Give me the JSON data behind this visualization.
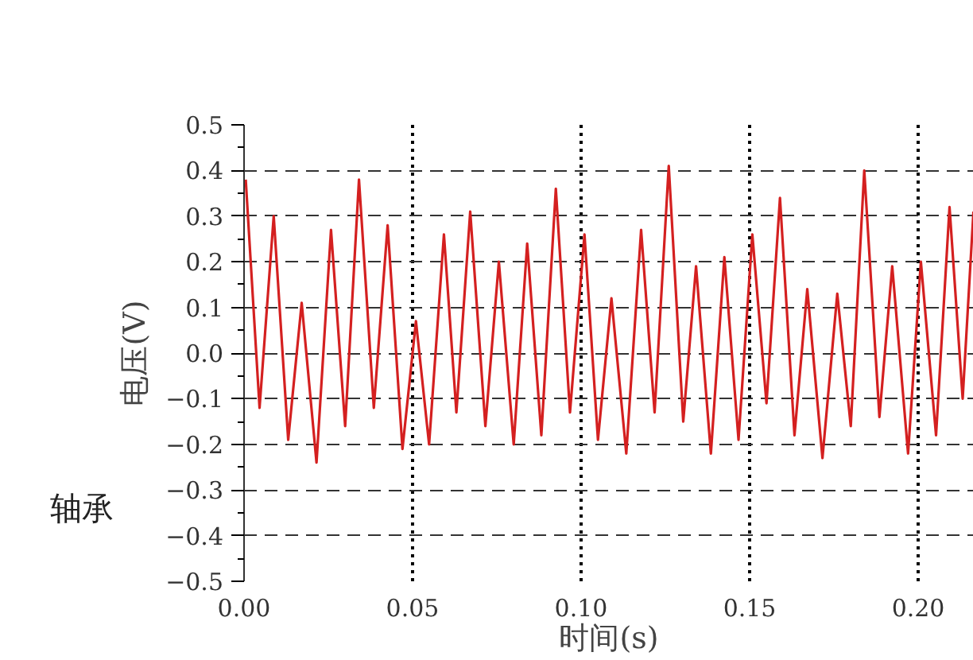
{
  "chart_data": {
    "type": "line",
    "xlabel": "时间(s)",
    "ylabel": "电压(V)",
    "annotations": [
      "轴承"
    ],
    "x": [
      0.0005,
      0.0046,
      0.0088,
      0.0131,
      0.0171,
      0.0215,
      0.0258,
      0.03,
      0.0341,
      0.0385,
      0.0426,
      0.047,
      0.051,
      0.0549,
      0.0593,
      0.063,
      0.0671,
      0.0716,
      0.0756,
      0.08,
      0.084,
      0.0882,
      0.0925,
      0.0967,
      0.101,
      0.105,
      0.109,
      0.1134,
      0.1178,
      0.1218,
      0.126,
      0.1303,
      0.1341,
      0.1385,
      0.1425,
      0.1467,
      0.1508,
      0.155,
      0.159,
      0.1633,
      0.1671,
      0.1716,
      0.176,
      0.18,
      0.184,
      0.1885,
      0.1923,
      0.197,
      0.2008,
      0.2053,
      0.2093,
      0.2132,
      0.2164
    ],
    "series": [
      {
        "color": "#d42020",
        "values": [
          0.38,
          -0.12,
          0.3,
          -0.19,
          0.11,
          -0.24,
          0.27,
          -0.16,
          0.38,
          -0.12,
          0.28,
          -0.21,
          0.07,
          -0.2,
          0.26,
          -0.13,
          0.31,
          -0.16,
          0.2,
          -0.2,
          0.24,
          -0.18,
          0.36,
          -0.13,
          0.26,
          -0.19,
          0.12,
          -0.22,
          0.27,
          -0.13,
          0.41,
          -0.15,
          0.19,
          -0.22,
          0.21,
          -0.19,
          0.26,
          -0.11,
          0.34,
          -0.18,
          0.14,
          -0.23,
          0.13,
          -0.16,
          0.4,
          -0.14,
          0.19,
          -0.22,
          0.2,
          -0.18,
          0.32,
          -0.1,
          0.31
        ]
      }
    ],
    "xlim": [
      0,
      0.2165
    ],
    "ylim": [
      -0.5,
      0.5
    ],
    "xticks": [
      {
        "value": 0,
        "label": "0.00"
      },
      {
        "value": 0.05,
        "label": "0.05"
      },
      {
        "value": 0.1,
        "label": "0.10"
      },
      {
        "value": 0.15,
        "label": "0.15"
      },
      {
        "value": 0.2,
        "label": "0.20"
      }
    ],
    "yticks": [
      -0.5,
      -0.4,
      -0.3,
      -0.2,
      -0.1,
      {
        "value": 0,
        "label": "0.0"
      },
      0.1,
      0.2,
      0.3,
      0.4,
      0.5
    ],
    "grid": true,
    "marker": "none",
    "line_style": "solid"
  }
}
